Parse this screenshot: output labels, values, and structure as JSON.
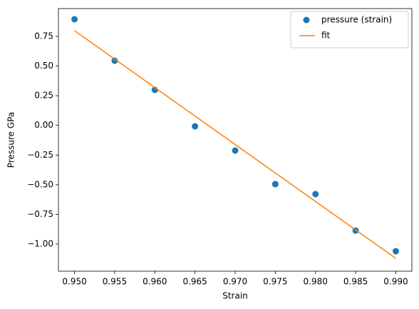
{
  "chart_data": {
    "type": "scatter",
    "xlabel": "Strain",
    "ylabel": "Pressure GPa",
    "xlim": [
      0.948,
      0.992
    ],
    "ylim": [
      -1.228,
      0.984
    ],
    "xticks": [
      {
        "value": 0.95,
        "label": "0.950"
      },
      {
        "value": 0.955,
        "label": "0.955"
      },
      {
        "value": 0.96,
        "label": "0.960"
      },
      {
        "value": 0.965,
        "label": "0.965"
      },
      {
        "value": 0.97,
        "label": "0.970"
      },
      {
        "value": 0.975,
        "label": "0.975"
      },
      {
        "value": 0.98,
        "label": "0.980"
      },
      {
        "value": 0.985,
        "label": "0.985"
      },
      {
        "value": 0.99,
        "label": "0.990"
      }
    ],
    "yticks": [
      {
        "value": -1.0,
        "label": "−1.00"
      },
      {
        "value": -0.75,
        "label": "−0.75"
      },
      {
        "value": -0.5,
        "label": "−0.50"
      },
      {
        "value": -0.25,
        "label": "−0.25"
      },
      {
        "value": 0,
        "label": "0.00"
      },
      0.25,
      {
        "value": 0.5,
        "label": "0.50"
      },
      0.75
    ],
    "legend": "upper right",
    "series": [
      {
        "name": "pressure (strain)",
        "type": "scatter",
        "color": "#1f77b4",
        "x": [
          0.95,
          0.955,
          0.96,
          0.965,
          0.97,
          0.975,
          0.98,
          0.985,
          0.99
        ],
        "values": [
          0.894,
          0.545,
          0.299,
          -0.008,
          -0.212,
          -0.495,
          -0.579,
          -0.886,
          -1.06
        ]
      },
      {
        "name": "fit",
        "type": "line",
        "color": "#ff7f0e",
        "x": [
          0.95,
          0.99
        ],
        "values": [
          0.798,
          -1.12
        ]
      }
    ]
  }
}
